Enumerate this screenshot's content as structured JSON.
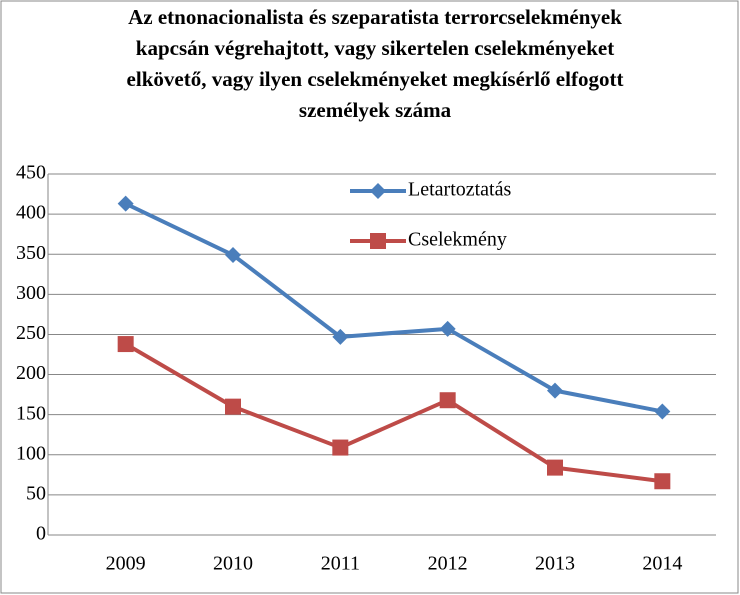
{
  "chart_data": {
    "type": "line",
    "title": "Az etnonacionalista és szeparatista terrorcselekmények kapcsán végrehajtott, vagy sikertelen cselekményeket elkövető, vagy ilyen cselekményeket megkísérlő elfogott személyek száma",
    "categories": [
      "2009",
      "2010",
      "2011",
      "2012",
      "2013",
      "2014"
    ],
    "series": [
      {
        "name": "Letartoztatás",
        "color": "#4a7ebb",
        "marker": "diamond",
        "values": [
          413,
          349,
          247,
          257,
          180,
          154
        ]
      },
      {
        "name": "Cselekmény",
        "color": "#be4b48",
        "marker": "square",
        "values": [
          238,
          160,
          109,
          168,
          84,
          67
        ]
      }
    ],
    "ylim": [
      0,
      450
    ],
    "yticks": [
      0,
      50,
      100,
      150,
      200,
      250,
      300,
      350,
      400,
      450
    ],
    "grid": true,
    "legend": "top-center"
  }
}
